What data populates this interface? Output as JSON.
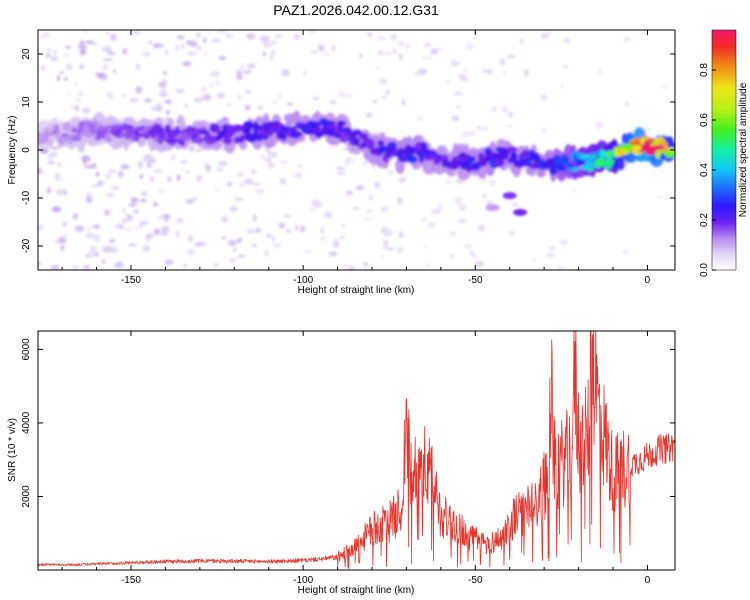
{
  "figure_title": "PAZ1.2026.042.00.12.G31",
  "colors": {
    "snr_line": "#e8322c",
    "axis": "#000000",
    "colormap": [
      "#ffffff",
      "#d9c9f2",
      "#b88cf0",
      "#7a2cf0",
      "#4b10e8",
      "#1f2cff",
      "#1f8fff",
      "#10e6f0",
      "#18f07a",
      "#7af018",
      "#f0f018",
      "#f0a818",
      "#f03a18",
      "#f01878",
      "#f0186a"
    ]
  },
  "chart_data": [
    {
      "type": "heatmap",
      "title": "PAZ1.2026.042.00.12.G31",
      "xlabel": "Height of straight line (km)",
      "ylabel": "Frequency (Hz)",
      "xlim": [
        -177,
        8
      ],
      "ylim": [
        -25,
        25
      ],
      "x_ticks": [
        -150,
        -100,
        -50,
        0
      ],
      "y_ticks": [
        -20,
        -10,
        0,
        10,
        20
      ],
      "x_tick_labels": [
        "-150",
        "-100",
        "-50",
        "0"
      ],
      "y_tick_labels": [
        "-20",
        "-10",
        "0",
        "10",
        "20"
      ],
      "colorbar": {
        "label": "Normalized spectral amplitude",
        "range": [
          0,
          0.96
        ],
        "ticks": [
          0.0,
          0.2,
          0.4,
          0.6,
          0.8
        ],
        "tick_labels": [
          "0.0",
          "0.2",
          "0.4",
          "0.6",
          "0.8"
        ]
      },
      "ridge": {
        "heights_km": [
          -177,
          -160,
          -150,
          -140,
          -130,
          -120,
          -110,
          -100,
          -95,
          -90,
          -85,
          -80,
          -75,
          -70,
          -65,
          -60,
          -55,
          -50,
          -45,
          -40,
          -35,
          -30,
          -25,
          -20,
          -15,
          -10,
          -5,
          0,
          8
        ],
        "frequency_hz": [
          3,
          4,
          3.5,
          3,
          3,
          3.5,
          4,
          4.5,
          4.5,
          4.5,
          2.5,
          1,
          -0.5,
          -1,
          -0.5,
          -1.5,
          -2.5,
          -2.5,
          -1.5,
          -1,
          -2,
          -3,
          -3,
          -2.5,
          -2,
          -1.5,
          0.5,
          0.5,
          0.5
        ],
        "amplitude": [
          0.12,
          0.18,
          0.2,
          0.22,
          0.25,
          0.28,
          0.3,
          0.3,
          0.3,
          0.28,
          0.26,
          0.3,
          0.3,
          0.32,
          0.3,
          0.28,
          0.3,
          0.3,
          0.32,
          0.3,
          0.3,
          0.32,
          0.38,
          0.45,
          0.5,
          0.6,
          0.85,
          0.96,
          0.7
        ]
      },
      "side_patches": [
        {
          "height_km": -40,
          "frequency_hz": -9.5,
          "amplitude": 0.2
        },
        {
          "height_km": -37,
          "frequency_hz": -13,
          "amplitude": 0.22
        },
        {
          "height_km": -45,
          "frequency_hz": -12,
          "amplitude": 0.12
        }
      ]
    },
    {
      "type": "line",
      "xlabel": "Height of straight line (km)",
      "ylabel": "SNR (10 * v/v)",
      "xlim": [
        -177,
        8
      ],
      "ylim": [
        0,
        6500
      ],
      "x_ticks": [
        -150,
        -100,
        -50,
        0
      ],
      "y_ticks": [
        2000,
        4000,
        6000
      ],
      "x_tick_labels": [
        "-150",
        "-100",
        "-50",
        "0"
      ],
      "y_tick_labels": [
        "2000",
        "4000",
        "6000"
      ],
      "series": [
        {
          "name": "SNR",
          "x": [
            -177,
            -170,
            -160,
            -150,
            -140,
            -130,
            -120,
            -110,
            -100,
            -95,
            -90,
            -85,
            -80,
            -75,
            -72,
            -70,
            -68,
            -66,
            -64,
            -62,
            -60,
            -57,
            -55,
            -52,
            -50,
            -47,
            -45,
            -42,
            -40,
            -38,
            -35,
            -32,
            -30,
            -28,
            -26,
            -24,
            -22,
            -20,
            -18,
            -16,
            -15,
            -14,
            -12,
            -10,
            -8,
            -6,
            -4,
            -2,
            0,
            2,
            4,
            6,
            8
          ],
          "y": [
            150,
            140,
            160,
            200,
            230,
            250,
            240,
            230,
            260,
            300,
            350,
            600,
            1100,
            1300,
            1600,
            2100,
            2600,
            2900,
            2700,
            2300,
            1500,
            1300,
            1200,
            900,
            850,
            700,
            750,
            900,
            1300,
            1500,
            1600,
            1800,
            2300,
            2600,
            2800,
            3000,
            3200,
            3300,
            3500,
            4200,
            5000,
            4300,
            3400,
            2600,
            2700,
            2800,
            2900,
            3000,
            3100,
            3200,
            3300,
            3300,
            3400
          ]
        }
      ],
      "peaks": [
        {
          "x": -70,
          "y": 4300
        },
        {
          "x": -28,
          "y": 4800
        },
        {
          "x": -16,
          "y": 6400
        },
        {
          "x": -21,
          "y": 5300
        }
      ]
    }
  ]
}
